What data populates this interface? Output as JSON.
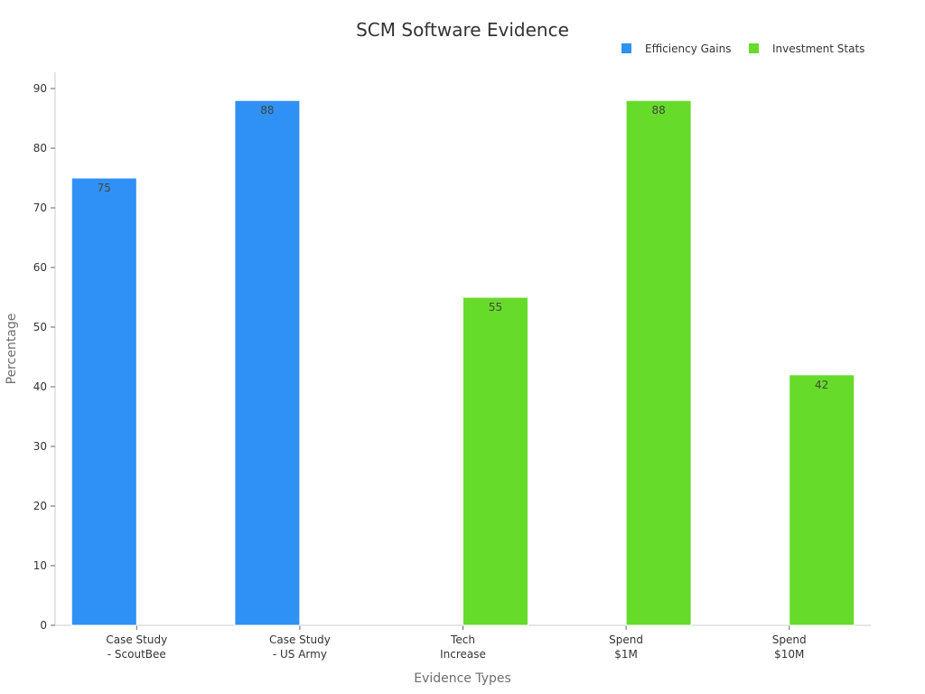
{
  "chart_data": {
    "type": "bar",
    "title": "SCM Software Evidence",
    "xlabel": "Evidence Types",
    "ylabel": "Percentage",
    "ylim": [
      0,
      92
    ],
    "yticks": [
      0,
      10,
      20,
      30,
      40,
      50,
      60,
      70,
      80,
      90
    ],
    "grid": false,
    "legend_position": "top-right",
    "categories": [
      [
        "Case Study",
        "- ScoutBee"
      ],
      [
        "Case Study",
        "- US Army"
      ],
      [
        "Tech",
        "Increase"
      ],
      [
        "Spend",
        "$1M"
      ],
      [
        "Spend",
        "$10M"
      ]
    ],
    "series": [
      {
        "name": "Efficiency Gains",
        "color": "#2f91f5",
        "values": [
          75,
          88,
          null,
          null,
          null
        ]
      },
      {
        "name": "Investment Stats",
        "color": "#67db2a",
        "values": [
          null,
          null,
          55,
          88,
          42
        ]
      }
    ]
  }
}
